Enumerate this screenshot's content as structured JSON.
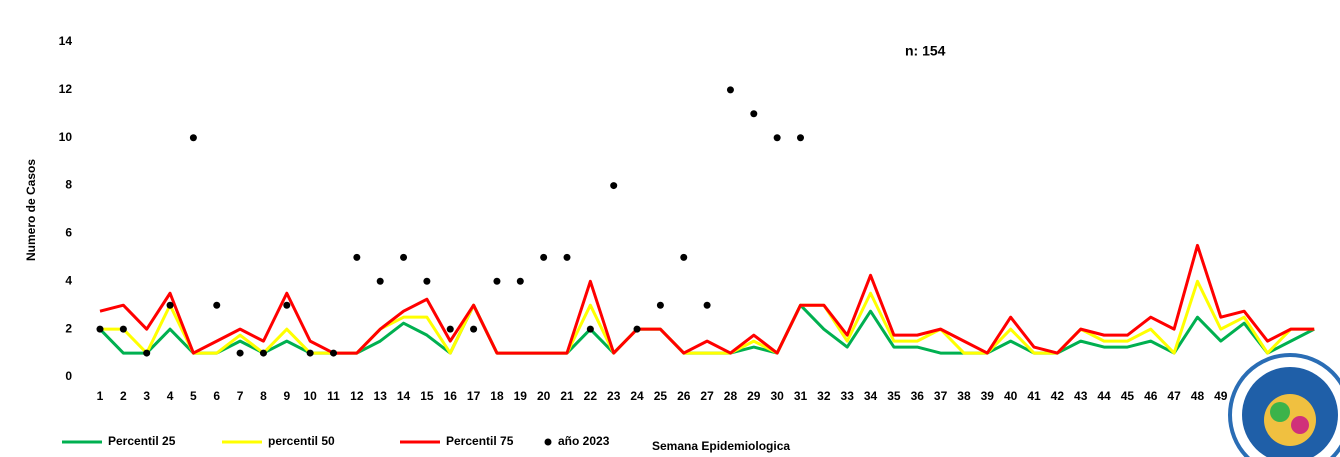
{
  "chart_data": {
    "type": "line",
    "annotation": "n: 154",
    "y_label": "Numero de Casos",
    "x_label": "Semana Epidemiologica",
    "categories": [
      1,
      2,
      3,
      4,
      5,
      6,
      7,
      8,
      9,
      10,
      11,
      12,
      13,
      14,
      15,
      16,
      17,
      18,
      19,
      20,
      21,
      22,
      23,
      24,
      25,
      26,
      27,
      28,
      29,
      30,
      31,
      32,
      33,
      34,
      35,
      36,
      37,
      38,
      39,
      40,
      41,
      42,
      43,
      44,
      45,
      46,
      47,
      48,
      49,
      null,
      null,
      null,
      null
    ],
    "ylim": [
      0,
      14
    ],
    "yticks": [
      0,
      2,
      4,
      6,
      8,
      10,
      12,
      14
    ],
    "series": [
      {
        "name": "Percentil 25",
        "color": "#00b050",
        "mode": "line",
        "values": [
          2,
          1,
          1,
          2,
          1,
          1,
          1.5,
          1,
          1.5,
          1,
          1,
          1,
          1.5,
          2.25,
          1.75,
          1,
          3,
          1,
          1,
          1,
          1,
          2,
          1,
          2,
          2,
          1,
          1,
          1,
          1.25,
          1,
          3,
          2,
          1.25,
          2.75,
          1.25,
          1.25,
          1,
          1,
          1,
          1.5,
          1,
          1,
          1.5,
          1.25,
          1.25,
          1.5,
          1,
          2.5,
          1.5,
          2.25,
          1,
          1.5,
          2
        ]
      },
      {
        "name": "percentil 50",
        "color": "#ffff00",
        "mode": "line",
        "values": [
          2,
          2,
          1,
          3,
          1,
          1,
          1.75,
          1,
          2,
          1,
          1,
          1,
          2,
          2.5,
          2.5,
          1,
          3,
          1,
          1,
          1,
          1,
          3,
          1,
          2,
          2,
          1,
          1,
          1,
          1.5,
          1,
          3,
          3,
          1.5,
          3.5,
          1.5,
          1.5,
          2,
          1,
          1,
          2,
          1,
          1,
          2,
          1.5,
          1.5,
          2,
          1,
          4,
          2,
          2.5,
          1,
          2,
          2
        ]
      },
      {
        "name": "Percentil 75",
        "color": "#ff0000",
        "mode": "line",
        "values": [
          2.75,
          3,
          2,
          3.5,
          1,
          1.5,
          2,
          1.5,
          3.5,
          1.5,
          1,
          1,
          2,
          2.75,
          3.25,
          1.5,
          3,
          1,
          1,
          1,
          1,
          4,
          1,
          2,
          2,
          1,
          1.5,
          1,
          1.75,
          1,
          3,
          3,
          1.75,
          4.25,
          1.75,
          1.75,
          2,
          1.5,
          1,
          2.5,
          1.25,
          1,
          2,
          1.75,
          1.75,
          2.5,
          2,
          5.5,
          2.5,
          2.75,
          1.5,
          2,
          2
        ]
      },
      {
        "name": "año 2023",
        "color": "#000000",
        "mode": "markers",
        "values": [
          2,
          2,
          1,
          3,
          10,
          3,
          1,
          1,
          3,
          1,
          1,
          5,
          4,
          5,
          4,
          2,
          2,
          4,
          4,
          5,
          5,
          2,
          8,
          2,
          3,
          5,
          3,
          12,
          11,
          10,
          10,
          null,
          null,
          null,
          null,
          null,
          null,
          null,
          null,
          null,
          null,
          null,
          null,
          null,
          null,
          null,
          null,
          null,
          null,
          null,
          null,
          null,
          null
        ]
      }
    ]
  }
}
